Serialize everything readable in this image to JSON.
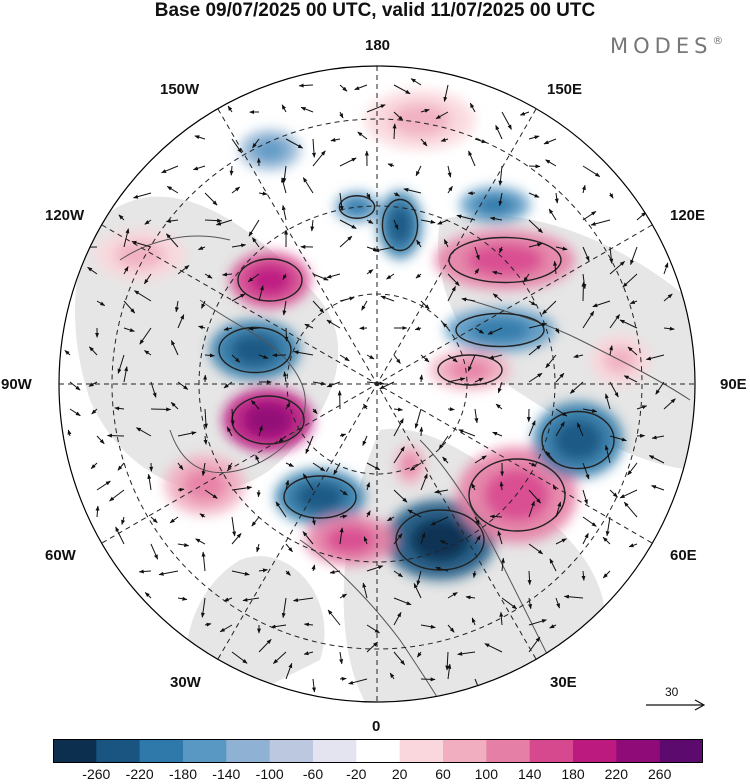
{
  "title": "Base 09/07/2025 00 UTC, valid 11/07/2025 00 UTC",
  "brand": {
    "name": "MODES",
    "mark": "®"
  },
  "map": {
    "projection": "north-polar-stereographic",
    "longitude_labels": {
      "top": "180",
      "bottom": "0",
      "left": "90W",
      "right": "90E",
      "upper_left_outer": "150W",
      "upper_left_inner": "120W",
      "lower_left_inner": "60W",
      "lower_left_outer": "30W",
      "upper_right_outer": "150E",
      "upper_right_inner": "120E",
      "lower_right_inner": "60E",
      "lower_right_outer": "30E"
    },
    "land_color": "#e6e6e6",
    "ocean_color": "#ffffff"
  },
  "wind_scale": {
    "label": "30"
  },
  "colorbar": {
    "colors": [
      "#0d2f4f",
      "#1a5582",
      "#2e79a9",
      "#5a98c4",
      "#8fb2d4",
      "#bcc8e0",
      "#e4e4f1",
      "#ffffff",
      "#f9d7dc",
      "#f1aec0",
      "#e57fa5",
      "#d7498f",
      "#bd1a7f",
      "#8e0b78",
      "#5c0a6e"
    ],
    "tick_labels": [
      "-260",
      "-220",
      "-180",
      "-140",
      "-100",
      "-60",
      "-20",
      "20",
      "60",
      "100",
      "140",
      "180",
      "220",
      "260"
    ]
  }
}
